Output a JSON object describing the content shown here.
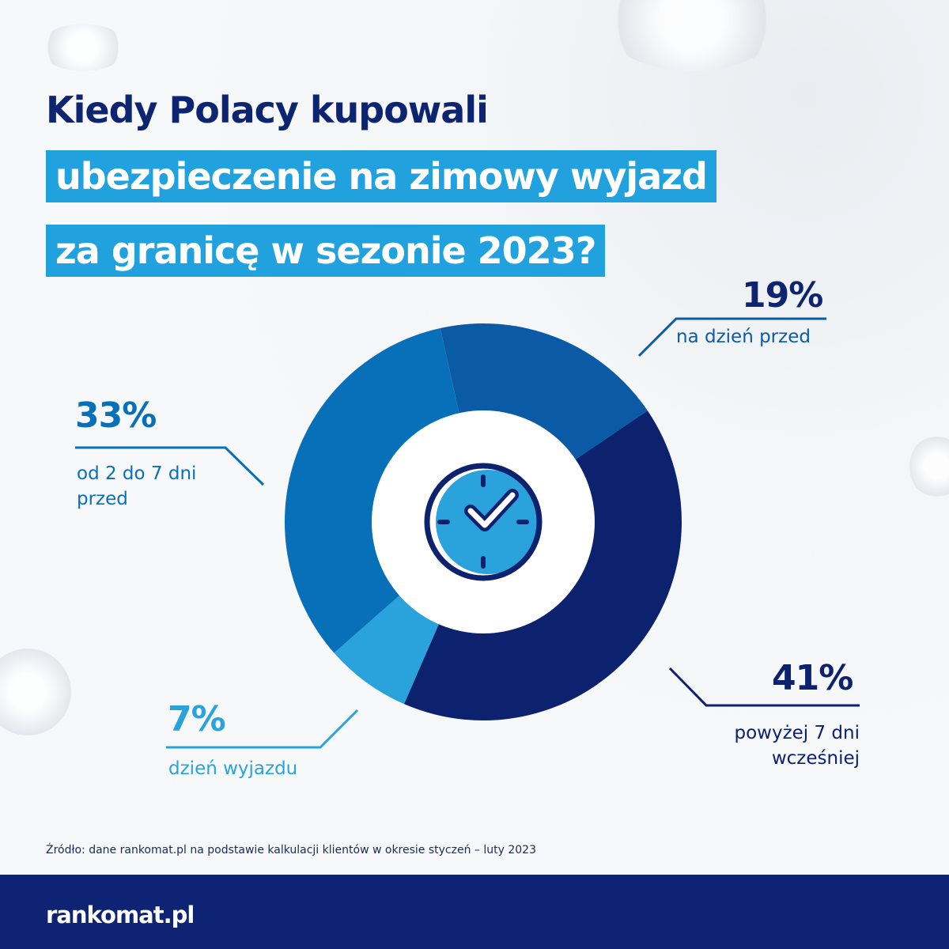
{
  "title": {
    "line1": "Kiedy Polacy kupowali",
    "line2": "ubezpieczenie na zimowy wyjazd",
    "line3": "za granicę w sezonie 2023?"
  },
  "chart_data": {
    "type": "pie",
    "donut": true,
    "slices": [
      {
        "label": "na dzień przed",
        "value": 19,
        "display": "19%",
        "color": "#0b5aa6"
      },
      {
        "label": "powyżej 7 dni wcześniej",
        "label_lines": [
          "powyżej 7 dni",
          "wcześniej"
        ],
        "value": 41,
        "display": "41%",
        "color": "#0c226e"
      },
      {
        "label": "dzień wyjazdu",
        "value": 7,
        "display": "7%",
        "color": "#2aa2dc"
      },
      {
        "label": "od 2 do 7 dni przed",
        "label_lines": [
          "od 2 do 7 dni",
          "przed"
        ],
        "value": 33,
        "display": "33%",
        "color": "#0870b8"
      }
    ],
    "center_icon": "clock-check-icon"
  },
  "source": "Źródło: dane rankomat.pl na podstawie kalkulacji klientów w okresie styczeń – luty 2023",
  "brand": {
    "logo": "rankomat.pl",
    "footer_color": "#0e2373",
    "accent": "#21a1dd"
  }
}
